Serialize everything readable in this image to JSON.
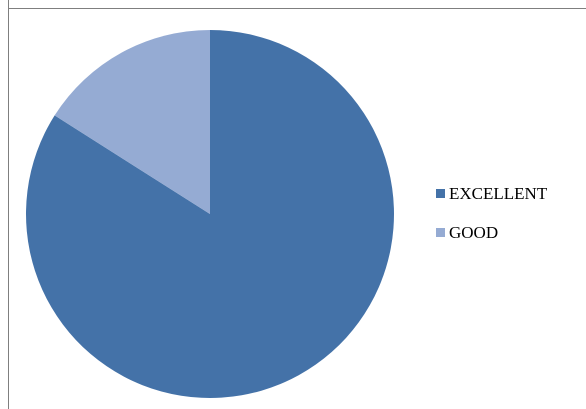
{
  "chart_data": {
    "type": "pie",
    "slices": [
      {
        "label": "EXCELLENT",
        "value": 84,
        "color": "#4472a8"
      },
      {
        "label": "GOOD",
        "value": 16,
        "color": "#95abd3"
      }
    ],
    "legend_position": "right"
  }
}
